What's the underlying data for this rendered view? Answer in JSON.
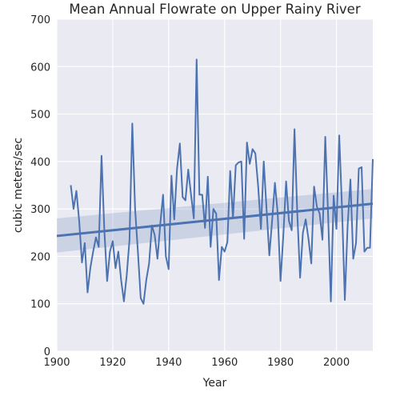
{
  "chart_data": {
    "type": "line",
    "title": "Mean Annual Flowrate on Upper Rainy River",
    "xlabel": "Year",
    "ylabel": "cubic meters/sec",
    "xlim": [
      1900,
      2013
    ],
    "ylim": [
      0,
      700
    ],
    "xticks": [
      1900,
      1920,
      1940,
      1960,
      1980,
      2000
    ],
    "yticks": [
      0,
      100,
      200,
      300,
      400,
      500,
      600,
      700
    ],
    "grid": true,
    "background": "#eaeaf2",
    "grid_color": "#ffffff",
    "series": [
      {
        "color": "#4c72b0",
        "x": [
          1905,
          1906,
          1907,
          1908,
          1909,
          1910,
          1911,
          1912,
          1913,
          1914,
          1915,
          1916,
          1917,
          1918,
          1919,
          1920,
          1921,
          1922,
          1923,
          1924,
          1925,
          1926,
          1927,
          1928,
          1929,
          1930,
          1931,
          1932,
          1933,
          1934,
          1935,
          1936,
          1937,
          1938,
          1939,
          1940,
          1941,
          1942,
          1943,
          1944,
          1945,
          1946,
          1947,
          1948,
          1949,
          1950,
          1951,
          1952,
          1953,
          1954,
          1955,
          1956,
          1957,
          1958,
          1959,
          1960,
          1961,
          1962,
          1963,
          1964,
          1965,
          1966,
          1967,
          1968,
          1969,
          1970,
          1971,
          1972,
          1973,
          1974,
          1975,
          1976,
          1977,
          1978,
          1979,
          1980,
          1981,
          1982,
          1983,
          1984,
          1985,
          1986,
          1987,
          1988,
          1989,
          1990,
          1991,
          1992,
          1993,
          1994,
          1995,
          1996,
          1997,
          1998,
          1999,
          2000,
          2001,
          2002,
          2003,
          2004,
          2005,
          2006,
          2007,
          2008,
          2009,
          2010,
          2011,
          2012,
          2013
        ],
        "y": [
          350,
          300,
          338,
          275,
          187,
          228,
          124,
          176,
          210,
          240,
          220,
          412,
          255,
          148,
          210,
          232,
          175,
          210,
          150,
          105,
          160,
          235,
          480,
          300,
          210,
          112,
          100,
          150,
          185,
          265,
          245,
          195,
          268,
          330,
          200,
          173,
          370,
          278,
          385,
          438,
          325,
          318,
          383,
          330,
          280,
          615,
          330,
          330,
          260,
          368,
          220,
          300,
          290,
          150,
          220,
          210,
          230,
          380,
          280,
          392,
          398,
          400,
          237,
          440,
          395,
          426,
          417,
          348,
          258,
          400,
          300,
          202,
          275,
          355,
          290,
          148,
          244,
          358,
          275,
          255,
          468,
          290,
          155,
          250,
          278,
          237,
          185,
          347,
          305,
          290,
          235,
          452,
          290,
          105,
          328,
          258,
          455,
          300,
          108,
          265,
          362,
          195,
          228,
          385,
          388,
          210,
          218,
          218,
          405
        ]
      }
    ],
    "regression": {
      "color": "#4c72b0",
      "x": [
        1900,
        2013
      ],
      "y": [
        243,
        311
      ],
      "ci_lower": [
        208,
        280
      ],
      "ci_upper": [
        280,
        342
      ]
    }
  }
}
